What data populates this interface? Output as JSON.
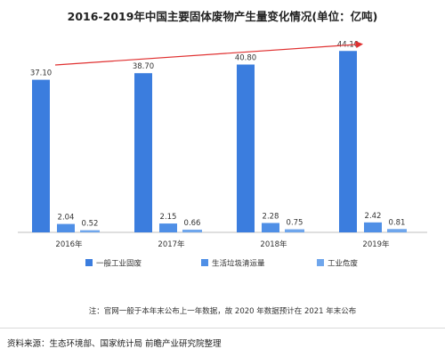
{
  "title": "2016-2019年中国主要固体废物产生量变化情况(单位：亿吨)",
  "note": "注：官网一般于本年末公布上一年数据，故 2020 年数据预计在 2021 年末公布",
  "source": "资料来源：生态环境部、国家统计局 前瞻产业研究院整理",
  "colors": {
    "series": [
      "#3b7dde",
      "#4f8fe6",
      "#6fa6ec"
    ],
    "arrow": "#e03030",
    "axis": "#bfbfbf",
    "text": "#333333"
  },
  "chart_data": {
    "type": "bar",
    "categories": [
      "2016年",
      "2017年",
      "2018年",
      "2019年"
    ],
    "series": [
      {
        "name": "一般工业固废",
        "values": [
          37.1,
          38.7,
          40.8,
          44.1
        ],
        "labels": [
          "37.10",
          "38.70",
          "40.80",
          "44.10"
        ]
      },
      {
        "name": "生活垃圾清运量",
        "values": [
          2.04,
          2.15,
          2.28,
          2.42
        ],
        "labels": [
          "2.04",
          "2.15",
          "2.28",
          "2.42"
        ]
      },
      {
        "name": "工业危废",
        "values": [
          0.52,
          0.66,
          0.75,
          0.81
        ],
        "labels": [
          "0.52",
          "0.66",
          "0.75",
          "0.81"
        ]
      }
    ],
    "ylim": [
      0,
      50
    ],
    "legend": "bottom",
    "grid": false,
    "trend_arrow": true
  }
}
